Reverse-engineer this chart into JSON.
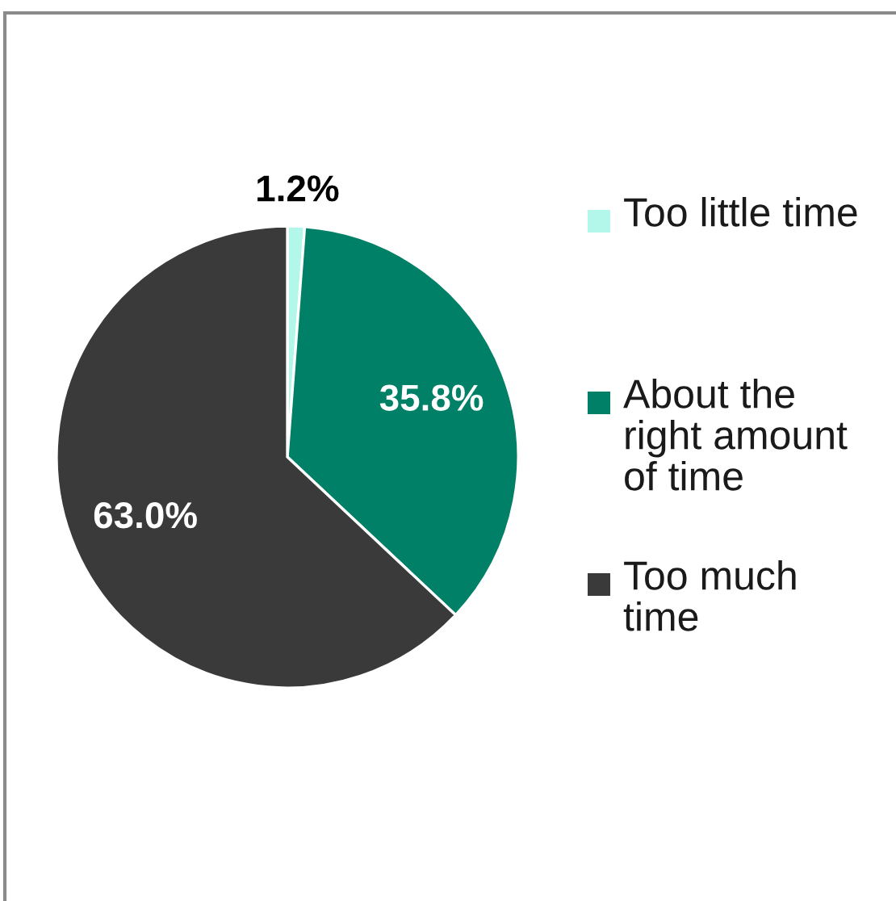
{
  "chart_data": {
    "type": "pie",
    "categories": [
      "Too little time",
      "About the right amount of time",
      "Too much time"
    ],
    "values": [
      1.2,
      35.8,
      63.0
    ],
    "colors": [
      "#b3f7ea",
      "#008066",
      "#3a3a3a"
    ],
    "value_labels": [
      "1.2%",
      "35.8%",
      "63.0%"
    ],
    "legend": "right"
  }
}
